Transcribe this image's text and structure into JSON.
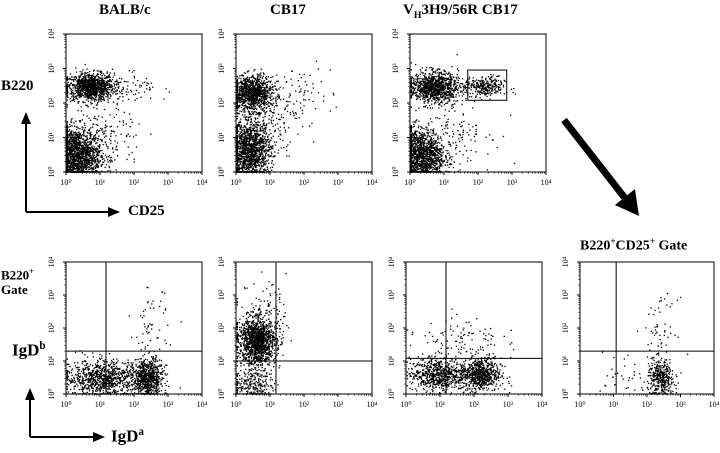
{
  "titles": {
    "balbc_prefix": "BALB/c",
    "cb17_prefix": "CB17",
    "vh_prefix": "V",
    "vh_sub": "H",
    "vh_rest": "3H9/56R CB17",
    "gate_prefix": "B220",
    "gate_sup": "+",
    "gate_mid": "CD25",
    "gate_sup2": "+",
    "gate_rest": " Gate"
  },
  "axis_labels": {
    "top_y": "B220",
    "top_x": "CD25",
    "bottom_y_main": "IgD",
    "bottom_y_sup": "b",
    "bottom_x_main": "IgD",
    "bottom_x_sup": "a",
    "side_line1_main": "B220",
    "side_line1_sup": "+",
    "side_line2": "Gate"
  },
  "colors": {
    "ink": "#000000",
    "background": "#ffffff"
  },
  "chart_data": [
    {
      "type": "scatter",
      "panel": "BALB/c",
      "x_label": "CD25",
      "y_label": "B220",
      "x_scale": "log",
      "y_scale": "log",
      "xlim": [
        1,
        10000
      ],
      "ylim": [
        1,
        10000
      ],
      "ticks": [
        "10⁰",
        "10¹",
        "10²",
        "10³",
        "10⁴"
      ],
      "gate_box": null,
      "quadrant": null,
      "populations": [
        {
          "x": 5,
          "y": 300,
          "spread_x": 0.35,
          "spread_y": 0.2,
          "n": 1000
        },
        {
          "x": 2,
          "y": 3,
          "spread_x": 0.35,
          "spread_y": 0.4,
          "n": 1600
        },
        {
          "x": 30,
          "y": 300,
          "spread_x": 0.6,
          "spread_y": 0.25,
          "n": 120
        },
        {
          "x": 15,
          "y": 10,
          "spread_x": 0.55,
          "spread_y": 0.5,
          "n": 150
        }
      ]
    },
    {
      "type": "scatter",
      "panel": "CB17",
      "x_label": "CD25",
      "y_label": "B220",
      "x_scale": "log",
      "y_scale": "log",
      "xlim": [
        1,
        10000
      ],
      "ylim": [
        1,
        10000
      ],
      "ticks": [
        "10⁰",
        "10¹",
        "10²",
        "10³",
        "10⁴"
      ],
      "gate_box": null,
      "quadrant": null,
      "populations": [
        {
          "x": 3,
          "y": 200,
          "spread_x": 0.3,
          "spread_y": 0.25,
          "n": 1000
        },
        {
          "x": 2.5,
          "y": 4,
          "spread_x": 0.3,
          "spread_y": 0.45,
          "n": 1400
        },
        {
          "x": 40,
          "y": 200,
          "spread_x": 0.6,
          "spread_y": 0.4,
          "n": 80
        },
        {
          "x": 8,
          "y": 30,
          "spread_x": 0.5,
          "spread_y": 0.5,
          "n": 150
        }
      ]
    },
    {
      "type": "scatter",
      "panel": "VH3H9/56R CB17",
      "x_label": "CD25",
      "y_label": "B220",
      "x_scale": "log",
      "y_scale": "log",
      "xlim": [
        1,
        10000
      ],
      "ylim": [
        1,
        10000
      ],
      "ticks": [
        "10⁰",
        "10¹",
        "10²",
        "10³",
        "10⁴"
      ],
      "gate_box": {
        "x": [
          50,
          700
        ],
        "y": [
          120,
          900
        ]
      },
      "quadrant": null,
      "populations": [
        {
          "x": 5,
          "y": 300,
          "spread_x": 0.35,
          "spread_y": 0.22,
          "n": 1000
        },
        {
          "x": 150,
          "y": 300,
          "spread_x": 0.3,
          "spread_y": 0.15,
          "n": 280
        },
        {
          "x": 2,
          "y": 3,
          "spread_x": 0.35,
          "spread_y": 0.4,
          "n": 1400
        },
        {
          "x": 20,
          "y": 20,
          "spread_x": 0.55,
          "spread_y": 0.6,
          "n": 150
        }
      ]
    },
    {
      "type": "scatter",
      "panel": "BALB/c",
      "x_label": "IgDa",
      "y_label": "IgDb",
      "x_scale": "log",
      "y_scale": "log",
      "xlim": [
        1,
        10000
      ],
      "ylim": [
        1,
        10000
      ],
      "ticks": [
        "10⁰",
        "10¹",
        "10²",
        "10³",
        "10⁴"
      ],
      "gate_box": null,
      "quadrant": {
        "x": 15,
        "y": 20
      },
      "populations": [
        {
          "x": 250,
          "y": 3,
          "spread_x": 0.22,
          "spread_y": 0.3,
          "n": 700
        },
        {
          "x": 12,
          "y": 3,
          "spread_x": 0.55,
          "spread_y": 0.28,
          "n": 900
        },
        {
          "x": 300,
          "y": 100,
          "spread_x": 0.25,
          "spread_y": 0.6,
          "n": 60
        }
      ]
    },
    {
      "type": "scatter",
      "panel": "CB17",
      "x_label": "IgDa",
      "y_label": "IgDb",
      "x_scale": "log",
      "y_scale": "log",
      "xlim": [
        1,
        10000
      ],
      "ylim": [
        1,
        10000
      ],
      "ticks": [
        "10⁰",
        "10¹",
        "10²",
        "10³",
        "10⁴"
      ],
      "gate_box": null,
      "quadrant": {
        "x": 15,
        "y": 10
      },
      "populations": [
        {
          "x": 4,
          "y": 40,
          "spread_x": 0.28,
          "spread_y": 0.35,
          "n": 1300
        },
        {
          "x": 3,
          "y": 2,
          "spread_x": 0.3,
          "spread_y": 0.25,
          "n": 250
        },
        {
          "x": 6,
          "y": 300,
          "spread_x": 0.35,
          "spread_y": 0.5,
          "n": 120
        }
      ]
    },
    {
      "type": "scatter",
      "panel": "VH3H9/56R CB17",
      "x_label": "IgDa",
      "y_label": "IgDb",
      "x_scale": "log",
      "y_scale": "log",
      "xlim": [
        1,
        10000
      ],
      "ylim": [
        1,
        10000
      ],
      "ticks": [
        "10⁰",
        "10¹",
        "10²",
        "10³",
        "10⁴"
      ],
      "gate_box": null,
      "quadrant": {
        "x": 15,
        "y": 12
      },
      "populations": [
        {
          "x": 150,
          "y": 4,
          "spread_x": 0.3,
          "spread_y": 0.25,
          "n": 700
        },
        {
          "x": 8,
          "y": 4,
          "spread_x": 0.4,
          "spread_y": 0.25,
          "n": 650
        },
        {
          "x": 40,
          "y": 40,
          "spread_x": 0.6,
          "spread_y": 0.4,
          "n": 120
        }
      ]
    },
    {
      "type": "scatter",
      "panel": "B220+CD25+ Gate",
      "x_label": "IgDa",
      "y_label": "IgDb",
      "x_scale": "log",
      "y_scale": "log",
      "xlim": [
        1,
        10000
      ],
      "ylim": [
        1,
        10000
      ],
      "ticks": [
        "10⁰",
        "10¹",
        "10²",
        "10³",
        "10⁴"
      ],
      "gate_box": null,
      "quadrant": {
        "x": 12,
        "y": 20
      },
      "populations": [
        {
          "x": 250,
          "y": 3,
          "spread_x": 0.2,
          "spread_y": 0.3,
          "n": 380
        },
        {
          "x": 250,
          "y": 100,
          "spread_x": 0.25,
          "spread_y": 0.45,
          "n": 50
        },
        {
          "x": 20,
          "y": 4,
          "spread_x": 0.4,
          "spread_y": 0.35,
          "n": 30
        }
      ]
    }
  ]
}
